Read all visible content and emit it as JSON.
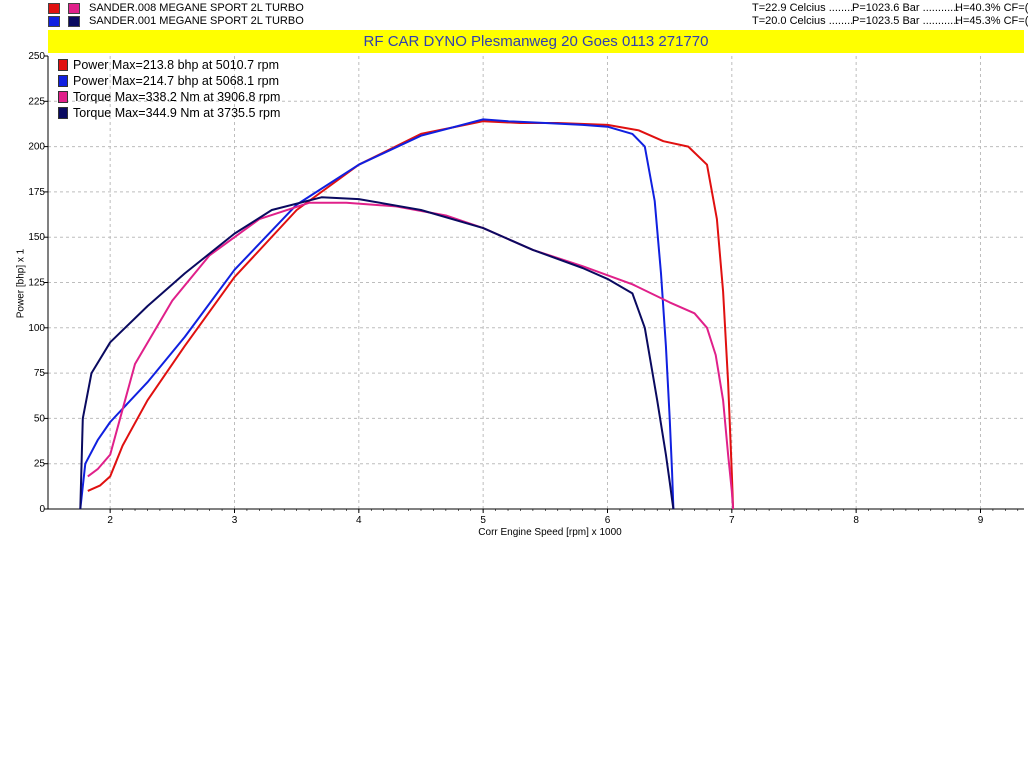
{
  "runs": [
    {
      "name": "SANDER.008 MEGANE SPORT   2L TURBO",
      "colors": [
        "#e01010",
        "#e0208a"
      ],
      "conditions": {
        "temp": "T=22.9 Celcius ........",
        "pressure": "P=1023.6 Bar ............",
        "humidity": "H=40.3% CF=("
      }
    },
    {
      "name": "SANDER.001 MEGANE SPORT   2L TURBO",
      "colors": [
        "#1020e0",
        "#0a0a60"
      ],
      "conditions": {
        "temp": "T=20.0 Celcius ........",
        "pressure": "P=1023.5 Bar ............",
        "humidity": "H=45.3% CF=("
      }
    }
  ],
  "banner": "RF CAR DYNO  Plesmanweg 20 Goes  0113 271770",
  "chart_data": {
    "type": "line",
    "xlabel": "Corr Engine Speed [rpm] x 1000",
    "ylabel": "Power [bhp] x 1",
    "xlim": [
      1.5,
      9.35
    ],
    "ylim": [
      0,
      250
    ],
    "xticks": [
      "2",
      "3",
      "4",
      "5",
      "6",
      "7",
      "8",
      "9"
    ],
    "yticks": [
      "0",
      "25",
      "50",
      "75",
      "100",
      "125",
      "150",
      "175",
      "200",
      "225",
      "250"
    ],
    "grid": true,
    "legend_position": "top-left",
    "series": [
      {
        "name": "Power  Max=213.8 bhp at 5010.7 rpm",
        "color": "#e01010",
        "x": [
          1.82,
          1.92,
          2.0,
          2.1,
          2.3,
          2.6,
          3.0,
          3.5,
          4.0,
          4.5,
          5.0,
          5.3,
          5.6,
          6.0,
          6.25,
          6.45,
          6.65,
          6.8,
          6.88,
          6.93,
          6.97,
          7.0,
          7.01
        ],
        "y": [
          10,
          13,
          18,
          35,
          60,
          90,
          128,
          165,
          190,
          207,
          214,
          213,
          213,
          212,
          209,
          203,
          200,
          190,
          160,
          120,
          70,
          20,
          0
        ]
      },
      {
        "name": "Power  Max=214.7 bhp at 5068.1 rpm",
        "color": "#1020e0",
        "x": [
          1.76,
          1.8,
          1.9,
          2.0,
          2.3,
          2.6,
          3.0,
          3.5,
          4.0,
          4.5,
          5.0,
          5.2,
          5.5,
          5.8,
          6.0,
          6.2,
          6.3,
          6.38,
          6.43,
          6.47,
          6.5,
          6.52,
          6.53
        ],
        "y": [
          0,
          25,
          38,
          48,
          70,
          95,
          132,
          168,
          190,
          206,
          215,
          214,
          213,
          212,
          211,
          207,
          200,
          170,
          130,
          90,
          50,
          20,
          0
        ]
      },
      {
        "name": "Torque  Max=338.2 Nm at 3906.8 rpm",
        "color": "#e0208a",
        "x": [
          1.82,
          1.9,
          2.0,
          2.1,
          2.2,
          2.5,
          2.8,
          3.2,
          3.6,
          3.9,
          4.3,
          4.7,
          5.0,
          5.4,
          5.8,
          6.2,
          6.5,
          6.7,
          6.8,
          6.87,
          6.93,
          6.97,
          7.0,
          7.01
        ],
        "y": [
          18,
          22,
          30,
          55,
          80,
          115,
          140,
          160,
          169,
          169,
          167,
          162,
          155,
          143,
          134,
          124,
          114,
          108,
          100,
          85,
          60,
          30,
          10,
          0
        ]
      },
      {
        "name": "Torque  Max=344.9 Nm at 3735.5 rpm",
        "color": "#0a0a60",
        "x": [
          1.76,
          1.78,
          1.85,
          2.0,
          2.3,
          2.6,
          3.0,
          3.3,
          3.7,
          4.0,
          4.5,
          5.0,
          5.4,
          5.8,
          6.0,
          6.2,
          6.3,
          6.4,
          6.47,
          6.5,
          6.52,
          6.53
        ],
        "y": [
          0,
          50,
          75,
          92,
          112,
          130,
          152,
          165,
          172,
          171,
          165,
          155,
          143,
          133,
          127,
          119,
          100,
          60,
          30,
          15,
          5,
          0
        ]
      }
    ]
  }
}
